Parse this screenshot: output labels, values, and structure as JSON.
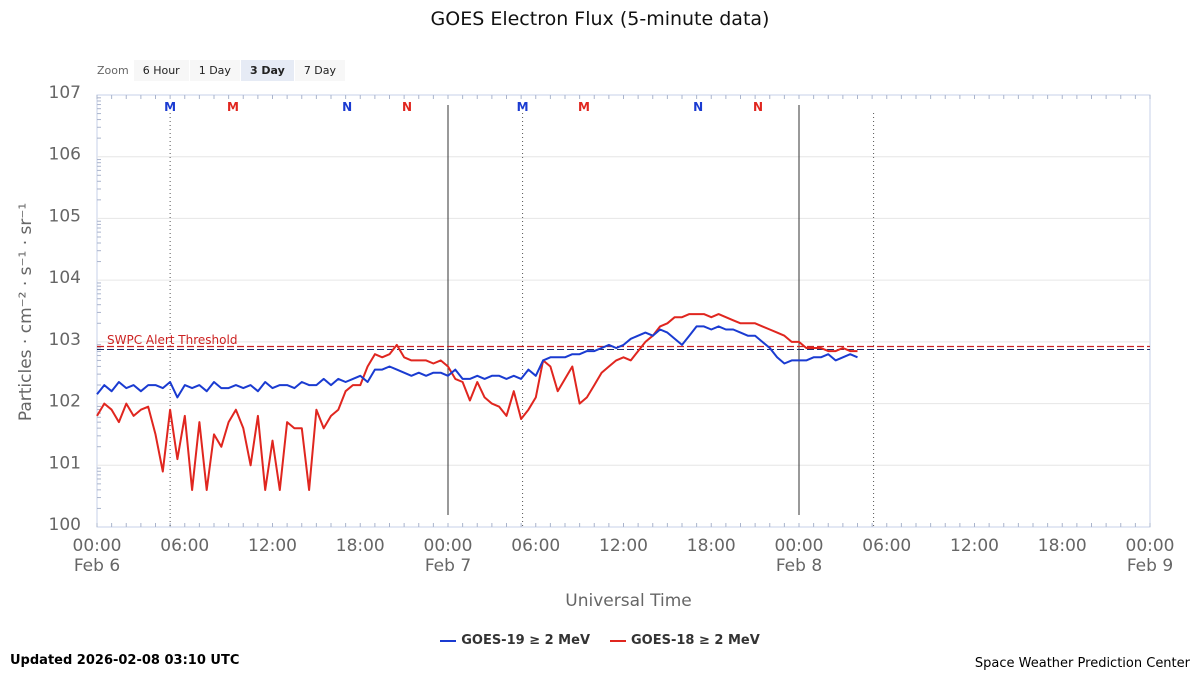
{
  "title": "GOES Electron Flux (5-minute data)",
  "zoom": {
    "label": "Zoom",
    "options": [
      "6 Hour",
      "1 Day",
      "3 Day",
      "7 Day"
    ],
    "selected": "3 Day"
  },
  "updated": "Updated 2026-02-08 03:10 UTC",
  "credit": "Space Weather Prediction Center",
  "chart_data": {
    "type": "line",
    "title": "GOES Electron Flux (5-minute data)",
    "xlabel": "Universal Time",
    "ylabel": "Particles · cm⁻² · s⁻¹ · sr⁻¹",
    "x_unit": "hours since 2026-02-06 00:00 UTC",
    "xlim": [
      0,
      72
    ],
    "ylim_exponent": [
      0,
      7
    ],
    "y_scale": "log10",
    "y_tick_labels": [
      "100",
      "101",
      "102",
      "103",
      "104",
      "105",
      "106",
      "107"
    ],
    "x_tick_labels": [
      {
        "time": "00:00",
        "date": "Feb 6"
      },
      {
        "time": "06:00",
        "date": ""
      },
      {
        "time": "12:00",
        "date": ""
      },
      {
        "time": "18:00",
        "date": ""
      },
      {
        "time": "00:00",
        "date": "Feb 7"
      },
      {
        "time": "06:00",
        "date": ""
      },
      {
        "time": "12:00",
        "date": ""
      },
      {
        "time": "18:00",
        "date": ""
      },
      {
        "time": "00:00",
        "date": "Feb 8"
      },
      {
        "time": "06:00",
        "date": ""
      },
      {
        "time": "12:00",
        "date": ""
      },
      {
        "time": "18:00",
        "date": ""
      },
      {
        "time": "00:00",
        "date": "Feb 9"
      }
    ],
    "threshold": {
      "label": "SWPC Alert Threshold",
      "log_value": 2.9,
      "color": "#cc2222"
    },
    "day_boundaries_h": [
      24,
      48
    ],
    "noon_markers": [
      {
        "label": "M",
        "x": 5,
        "color": "#1a3bd1",
        "line": true
      },
      {
        "label": "M",
        "x": 9.3,
        "color": "#e0261f",
        "line": false
      },
      {
        "label": "N",
        "x": 17.1,
        "color": "#1a3bd1",
        "line": false
      },
      {
        "label": "N",
        "x": 21.2,
        "color": "#e0261f",
        "line": false
      },
      {
        "label": "M",
        "x": 29.1,
        "color": "#1a3bd1",
        "line": true
      },
      {
        "label": "M",
        "x": 33.3,
        "color": "#e0261f",
        "line": false
      },
      {
        "label": "N",
        "x": 41.1,
        "color": "#1a3bd1",
        "line": false
      },
      {
        "label": "N",
        "x": 45.2,
        "color": "#e0261f",
        "line": false
      },
      {
        "label": "",
        "x": 53.1,
        "color": "#1a3bd1",
        "line": true
      }
    ],
    "series": [
      {
        "name": "GOES-19 ≥ 2 MeV",
        "color": "#1a3bd1",
        "x": [
          0,
          0.5,
          1,
          1.5,
          2,
          2.5,
          3,
          3.5,
          4,
          4.5,
          5,
          5.5,
          6,
          6.5,
          7,
          7.5,
          8,
          8.5,
          9,
          9.5,
          10,
          10.5,
          11,
          11.5,
          12,
          12.5,
          13,
          13.5,
          14,
          14.5,
          15,
          15.5,
          16,
          16.5,
          17,
          17.5,
          18,
          18.5,
          19,
          19.5,
          20,
          20.5,
          21,
          21.5,
          22,
          22.5,
          23,
          23.5,
          24,
          24.5,
          25,
          25.5,
          26,
          26.5,
          27,
          27.5,
          28,
          28.5,
          29,
          29.5,
          30,
          30.5,
          31,
          31.5,
          32,
          32.5,
          33,
          33.5,
          34,
          34.5,
          35,
          35.5,
          36,
          36.5,
          37,
          37.5,
          38,
          38.5,
          39,
          39.5,
          40,
          40.5,
          41,
          41.5,
          42,
          42.5,
          43,
          43.5,
          44,
          44.5,
          45,
          45.5,
          46,
          46.5,
          47,
          47.5,
          48,
          48.5,
          49,
          49.5,
          50,
          50.5,
          51,
          51.5,
          52
        ],
        "y": [
          2.15,
          2.3,
          2.2,
          2.35,
          2.25,
          2.3,
          2.2,
          2.3,
          2.3,
          2.25,
          2.35,
          2.1,
          2.3,
          2.25,
          2.3,
          2.2,
          2.35,
          2.25,
          2.25,
          2.3,
          2.25,
          2.3,
          2.2,
          2.35,
          2.25,
          2.3,
          2.3,
          2.25,
          2.35,
          2.3,
          2.3,
          2.4,
          2.3,
          2.4,
          2.35,
          2.4,
          2.45,
          2.35,
          2.55,
          2.55,
          2.6,
          2.55,
          2.5,
          2.45,
          2.5,
          2.45,
          2.5,
          2.5,
          2.45,
          2.55,
          2.4,
          2.4,
          2.45,
          2.4,
          2.45,
          2.45,
          2.4,
          2.45,
          2.4,
          2.55,
          2.45,
          2.7,
          2.75,
          2.75,
          2.75,
          2.8,
          2.8,
          2.85,
          2.85,
          2.9,
          2.95,
          2.9,
          2.95,
          3.05,
          3.1,
          3.15,
          3.1,
          3.2,
          3.15,
          3.05,
          2.95,
          3.1,
          3.25,
          3.25,
          3.2,
          3.25,
          3.2,
          3.2,
          3.15,
          3.1,
          3.1,
          3.0,
          2.9,
          2.75,
          2.65,
          2.7,
          2.7,
          2.7,
          2.75,
          2.75,
          2.8,
          2.7,
          2.75,
          2.8,
          2.75
        ]
      },
      {
        "name": "GOES-18 ≥ 2 MeV",
        "color": "#e0261f",
        "x": [
          0,
          0.5,
          1,
          1.5,
          2,
          2.5,
          3,
          3.5,
          4,
          4.5,
          5,
          5.5,
          6,
          6.5,
          7,
          7.5,
          8,
          8.5,
          9,
          9.5,
          10,
          10.5,
          11,
          11.5,
          12,
          12.5,
          13,
          13.5,
          14,
          14.5,
          15,
          15.5,
          16,
          16.5,
          17,
          17.5,
          18,
          18.5,
          19,
          19.5,
          20,
          20.5,
          21,
          21.5,
          22,
          22.5,
          23,
          23.5,
          24,
          24.5,
          25,
          25.5,
          26,
          26.5,
          27,
          27.5,
          28,
          28.5,
          29,
          29.5,
          30,
          30.5,
          31,
          31.5,
          32,
          32.5,
          33,
          33.5,
          34,
          34.5,
          35,
          35.5,
          36,
          36.5,
          37,
          37.5,
          38,
          38.5,
          39,
          39.5,
          40,
          40.5,
          41,
          41.5,
          42,
          42.5,
          43,
          43.5,
          44,
          44.5,
          45,
          45.5,
          46,
          46.5,
          47,
          47.5,
          48,
          48.5,
          49,
          49.5,
          50,
          50.5,
          51,
          51.5,
          52
        ],
        "y": [
          1.8,
          2.0,
          1.9,
          1.7,
          2.0,
          1.8,
          1.9,
          1.95,
          1.5,
          0.9,
          1.9,
          1.1,
          1.8,
          0.6,
          1.7,
          0.6,
          1.5,
          1.3,
          1.7,
          1.9,
          1.6,
          1.0,
          1.8,
          0.6,
          1.4,
          0.6,
          1.7,
          1.6,
          1.6,
          0.6,
          1.9,
          1.6,
          1.8,
          1.9,
          2.2,
          2.3,
          2.3,
          2.6,
          2.8,
          2.75,
          2.8,
          2.95,
          2.75,
          2.7,
          2.7,
          2.7,
          2.65,
          2.7,
          2.6,
          2.4,
          2.35,
          2.05,
          2.35,
          2.1,
          2.0,
          1.95,
          1.8,
          2.2,
          1.75,
          1.9,
          2.1,
          2.7,
          2.6,
          2.2,
          2.4,
          2.6,
          2.0,
          2.1,
          2.3,
          2.5,
          2.6,
          2.7,
          2.75,
          2.7,
          2.85,
          3.0,
          3.1,
          3.25,
          3.3,
          3.4,
          3.4,
          3.45,
          3.45,
          3.45,
          3.4,
          3.45,
          3.4,
          3.35,
          3.3,
          3.3,
          3.3,
          3.25,
          3.2,
          3.15,
          3.1,
          3.0,
          3.0,
          2.9,
          2.9,
          2.9,
          2.85,
          2.85,
          2.9,
          2.85,
          2.85
        ]
      }
    ],
    "legend": [
      "GOES-19 ≥ 2 MeV",
      "GOES-18 ≥ 2 MeV"
    ]
  }
}
